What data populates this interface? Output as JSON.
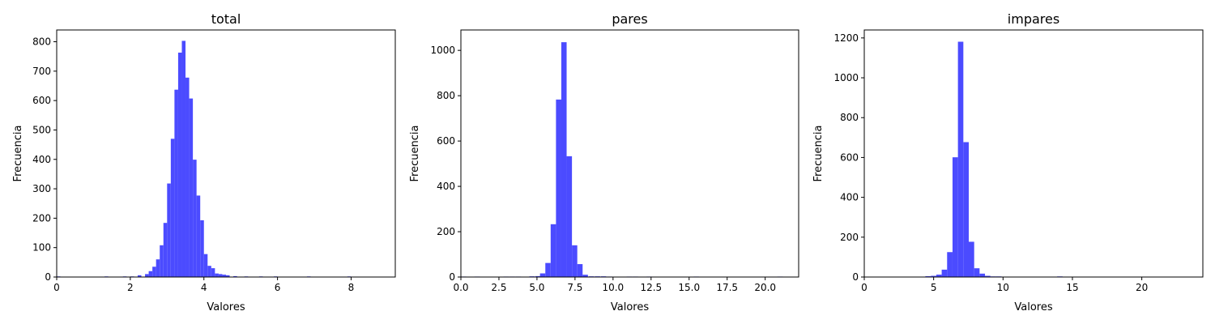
{
  "chart_data": [
    {
      "type": "bar",
      "title": "total",
      "xlabel": "Valores",
      "ylabel": "Frecuencia",
      "xlim": [
        0,
        9.2
      ],
      "ylim": [
        0,
        840
      ],
      "xticks": [
        0,
        2,
        4,
        6,
        8
      ],
      "xtick_labels": [
        "0",
        "2",
        "4",
        "6",
        "8"
      ],
      "yticks": [
        0,
        100,
        200,
        300,
        400,
        500,
        600,
        700,
        800
      ],
      "ytick_labels": [
        "0",
        "100",
        "200",
        "300",
        "400",
        "500",
        "600",
        "700",
        "800"
      ],
      "bar_color": "#4b4bff",
      "bin_width": 0.1,
      "bins": [
        {
          "x": 0.0,
          "v": 2
        },
        {
          "x": 0.7,
          "v": 1
        },
        {
          "x": 1.0,
          "v": 1
        },
        {
          "x": 1.3,
          "v": 2
        },
        {
          "x": 1.5,
          "v": 1
        },
        {
          "x": 1.8,
          "v": 2
        },
        {
          "x": 2.0,
          "v": 2
        },
        {
          "x": 2.2,
          "v": 6
        },
        {
          "x": 2.4,
          "v": 10
        },
        {
          "x": 2.5,
          "v": 20
        },
        {
          "x": 2.6,
          "v": 35
        },
        {
          "x": 2.7,
          "v": 60
        },
        {
          "x": 2.8,
          "v": 108
        },
        {
          "x": 2.9,
          "v": 184
        },
        {
          "x": 3.0,
          "v": 318
        },
        {
          "x": 3.1,
          "v": 470
        },
        {
          "x": 3.2,
          "v": 637
        },
        {
          "x": 3.3,
          "v": 763
        },
        {
          "x": 3.4,
          "v": 803
        },
        {
          "x": 3.5,
          "v": 678
        },
        {
          "x": 3.6,
          "v": 607
        },
        {
          "x": 3.7,
          "v": 399
        },
        {
          "x": 3.8,
          "v": 277
        },
        {
          "x": 3.9,
          "v": 193
        },
        {
          "x": 4.0,
          "v": 78
        },
        {
          "x": 4.1,
          "v": 38
        },
        {
          "x": 4.2,
          "v": 30
        },
        {
          "x": 4.3,
          "v": 12
        },
        {
          "x": 4.4,
          "v": 10
        },
        {
          "x": 4.5,
          "v": 8
        },
        {
          "x": 4.6,
          "v": 6
        },
        {
          "x": 4.8,
          "v": 3
        },
        {
          "x": 5.1,
          "v": 2
        },
        {
          "x": 5.3,
          "v": 1
        },
        {
          "x": 5.5,
          "v": 2
        },
        {
          "x": 5.9,
          "v": 2
        },
        {
          "x": 6.5,
          "v": 1
        },
        {
          "x": 6.8,
          "v": 2
        },
        {
          "x": 7.5,
          "v": 1
        },
        {
          "x": 7.9,
          "v": 2
        },
        {
          "x": 8.1,
          "v": 1
        }
      ]
    },
    {
      "type": "bar",
      "title": "pares",
      "xlabel": "Valores",
      "ylabel": "Frecuencia",
      "xlim": [
        0,
        22.2
      ],
      "ylim": [
        0,
        1090
      ],
      "xticks": [
        0,
        2.5,
        5,
        7.5,
        10,
        12.5,
        15,
        17.5,
        20
      ],
      "xtick_labels": [
        "0.0",
        "2.5",
        "5.0",
        "7.5",
        "10.0",
        "12.5",
        "15.0",
        "17.5",
        "20.0"
      ],
      "yticks": [
        0,
        200,
        400,
        600,
        800,
        1000
      ],
      "ytick_labels": [
        "0",
        "200",
        "400",
        "600",
        "800",
        "1000"
      ],
      "bar_color": "#4b4bff",
      "bin_width": 0.35,
      "bins": [
        {
          "x": 0.0,
          "v": 2
        },
        {
          "x": 0.9,
          "v": 2
        },
        {
          "x": 2.8,
          "v": 2
        },
        {
          "x": 3.2,
          "v": 2
        },
        {
          "x": 3.6,
          "v": 2
        },
        {
          "x": 4.5,
          "v": 3
        },
        {
          "x": 4.9,
          "v": 4
        },
        {
          "x": 5.2,
          "v": 16
        },
        {
          "x": 5.55,
          "v": 62
        },
        {
          "x": 5.9,
          "v": 233
        },
        {
          "x": 6.25,
          "v": 783
        },
        {
          "x": 6.6,
          "v": 1036
        },
        {
          "x": 6.95,
          "v": 533
        },
        {
          "x": 7.3,
          "v": 140
        },
        {
          "x": 7.65,
          "v": 57
        },
        {
          "x": 8.0,
          "v": 10
        },
        {
          "x": 8.4,
          "v": 3
        },
        {
          "x": 8.8,
          "v": 3
        },
        {
          "x": 9.2,
          "v": 3
        },
        {
          "x": 9.6,
          "v": 2
        },
        {
          "x": 10.9,
          "v": 2
        },
        {
          "x": 11.3,
          "v": 2
        },
        {
          "x": 12.2,
          "v": 2
        },
        {
          "x": 15.3,
          "v": 2
        },
        {
          "x": 20.8,
          "v": 2
        }
      ]
    },
    {
      "type": "bar",
      "title": "impares",
      "xlabel": "Valores",
      "ylabel": "Frecuencia",
      "xlim": [
        0,
        24.4
      ],
      "ylim": [
        0,
        1240
      ],
      "xticks": [
        0,
        5,
        10,
        15,
        20
      ],
      "xtick_labels": [
        "0",
        "5",
        "10",
        "15",
        "20"
      ],
      "yticks": [
        0,
        200,
        400,
        600,
        800,
        1000,
        1200
      ],
      "ytick_labels": [
        "0",
        "200",
        "400",
        "600",
        "800",
        "1000",
        "1200"
      ],
      "bar_color": "#4b4bff",
      "bin_width": 0.39,
      "bins": [
        {
          "x": 0.0,
          "v": 2
        },
        {
          "x": 1.4,
          "v": 2
        },
        {
          "x": 2.7,
          "v": 2
        },
        {
          "x": 3.5,
          "v": 2
        },
        {
          "x": 4.0,
          "v": 2
        },
        {
          "x": 4.4,
          "v": 4
        },
        {
          "x": 4.8,
          "v": 6
        },
        {
          "x": 5.19,
          "v": 12
        },
        {
          "x": 5.58,
          "v": 37
        },
        {
          "x": 5.97,
          "v": 125
        },
        {
          "x": 6.36,
          "v": 601
        },
        {
          "x": 6.75,
          "v": 1181
        },
        {
          "x": 7.14,
          "v": 677
        },
        {
          "x": 7.53,
          "v": 177
        },
        {
          "x": 7.92,
          "v": 44
        },
        {
          "x": 8.31,
          "v": 17
        },
        {
          "x": 8.7,
          "v": 6
        },
        {
          "x": 9.1,
          "v": 3
        },
        {
          "x": 9.5,
          "v": 3
        },
        {
          "x": 9.9,
          "v": 2
        },
        {
          "x": 10.5,
          "v": 2
        },
        {
          "x": 11.0,
          "v": 2
        },
        {
          "x": 12.0,
          "v": 2
        },
        {
          "x": 12.6,
          "v": 2
        },
        {
          "x": 13.9,
          "v": 3
        },
        {
          "x": 15.1,
          "v": 2
        },
        {
          "x": 23.2,
          "v": 2
        }
      ]
    }
  ]
}
